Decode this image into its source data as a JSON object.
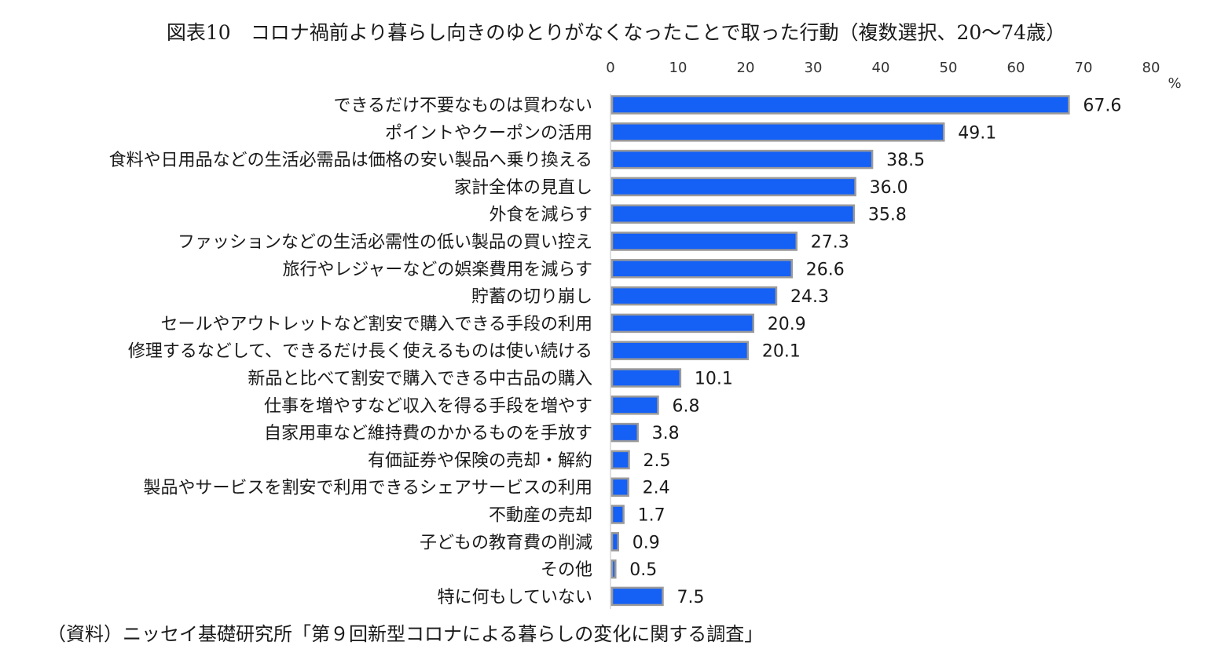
{
  "title": "図表10　コロナ禍前より暮らし向きのゆとりがなくなったことで取った行動（複数選択、20～74歳）",
  "source": "（資料）ニッセイ基礎研究所「第９回新型コロナによる暮らしの変化に関する調査」",
  "colors": {
    "bar": "#1560f5",
    "bar_edge": "#9a9a9a",
    "axis": "#bfbfbf"
  },
  "chart_data": {
    "type": "bar",
    "orientation": "horizontal",
    "xlim": [
      0,
      80
    ],
    "x_ticks": [
      "0",
      "10",
      "20",
      "30",
      "40",
      "50",
      "60",
      "70",
      "80"
    ],
    "axis_position": "top",
    "unit": "%",
    "grid": false,
    "categories": [
      "できるだけ不要なものは買わない",
      "ポイントやクーポンの活用",
      "食料や日用品などの生活必需品は価格の安い製品へ乗り換える",
      "家計全体の見直し",
      "外食を減らす",
      "ファッションなどの生活必需性の低い製品の買い控え",
      "旅行やレジャーなどの娯楽費用を減らす",
      "貯蓄の切り崩し",
      "セールやアウトレットなど割安で購入できる手段の利用",
      "修理するなどして、できるだけ長く使えるものは使い続ける",
      "新品と比べて割安で購入できる中古品の購入",
      "仕事を増やすなど収入を得る手段を増やす",
      "自家用車など維持費のかかるものを手放す",
      "有価証券や保険の売却・解約",
      "製品やサービスを割安で利用できるシェアサービスの利用",
      "不動産の売却",
      "子どもの教育費の削減",
      "その他",
      "特に何もしていない"
    ],
    "values": [
      67.6,
      49.1,
      38.5,
      36.0,
      35.8,
      27.3,
      26.6,
      24.3,
      20.9,
      20.1,
      10.1,
      6.8,
      3.8,
      2.5,
      2.4,
      1.7,
      0.9,
      0.5,
      7.5
    ],
    "value_labels": [
      "67.6",
      "49.1",
      "38.5",
      "36.0",
      "35.8",
      "27.3",
      "26.6",
      "24.3",
      "20.9",
      "20.1",
      "10.1",
      "6.8",
      "3.8",
      "2.5",
      "2.4",
      "1.7",
      "0.9",
      "0.5",
      "7.5"
    ]
  }
}
